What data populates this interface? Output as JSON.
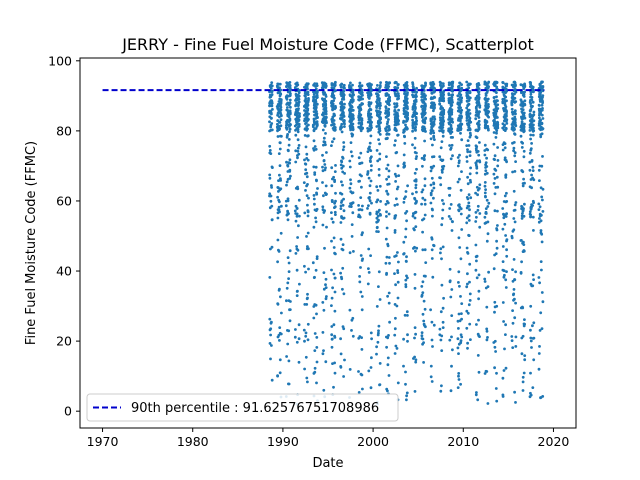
{
  "chart_data": {
    "type": "scatter",
    "title": "JERRY - Fine Fuel Moisture Code (FFMC), Scatterplot",
    "xlabel": "Date",
    "ylabel": "Fine Fuel Moisture Code (FFMC)",
    "xlim": [
      1967.5,
      2022.5
    ],
    "ylim": [
      -4.8,
      100.8
    ],
    "xticks": [
      1970,
      1980,
      1990,
      2000,
      2010,
      2020
    ],
    "yticks": [
      0,
      20,
      40,
      60,
      80,
      100
    ],
    "grid": false,
    "legend_position": "lower-left",
    "series": [
      {
        "kind": "scatter",
        "color": "#1f77b4",
        "x_start": 1988.5,
        "x_end": 2018.9,
        "y_range": [
          1,
          96
        ],
        "approx_points": 3600,
        "season_months": "May-October each year"
      },
      {
        "kind": "hline",
        "name": "90th percentile : 91.62576751708986",
        "value": 91.62576751708986,
        "x_range": [
          1970,
          2019
        ],
        "color": "#0000cc",
        "style": "dashed"
      }
    ]
  }
}
